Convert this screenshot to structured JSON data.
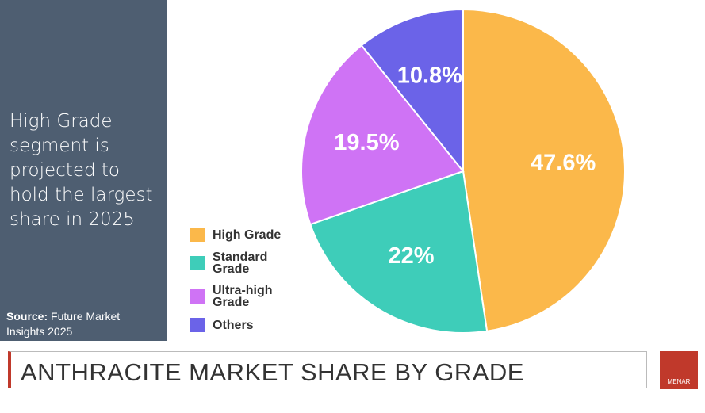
{
  "chart_data": {
    "type": "pie",
    "headline": "High Grade segment is projected to hold the largest share in 2025",
    "source_label": "Source:",
    "source_text": "Future Market Insights 2025",
    "title": "ANTHRACITE MARKET SHARE BY GRADE",
    "logo": "MENAR",
    "categories": [
      "High Grade",
      "Standard Grade",
      "Ultra-high Grade",
      "Others"
    ],
    "values": [
      47.6,
      22,
      19.5,
      10.8
    ],
    "value_labels": [
      "47.6%",
      "22%",
      "19.5%",
      "10.8%"
    ],
    "colors": [
      "#fbb84a",
      "#3ecdb9",
      "#cf73f5",
      "#6b63e8"
    ]
  }
}
